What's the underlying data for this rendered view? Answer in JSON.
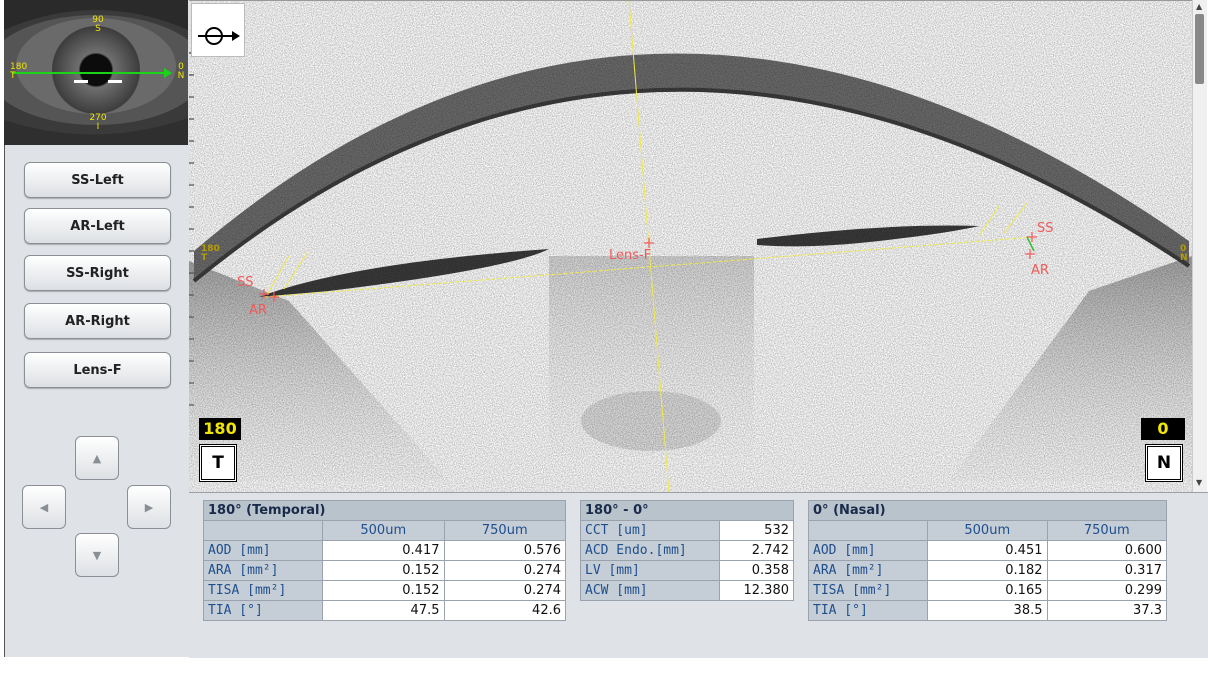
{
  "eye_thumbnail": {
    "labels": {
      "top_deg": "90",
      "top_dir": "S",
      "left_deg": "180",
      "left_dir": "T",
      "right_deg": "0",
      "right_dir": "N",
      "bottom_deg": "270",
      "bottom_dir": "I"
    },
    "scan_line_color": "#19d419"
  },
  "sidebar": {
    "buttons": [
      "SS-Left",
      "AR-Left",
      "SS-Right",
      "AR-Right",
      "Lens-F"
    ],
    "nav_icons": {
      "up": "triangle-up-icon",
      "left": "triangle-left-icon",
      "right": "triangle-right-icon",
      "down": "triangle-down-icon"
    }
  },
  "scan": {
    "orientation_icon": "eye-direction-icon",
    "left_degree": "180",
    "left_direction": "T",
    "right_degree": "0",
    "right_direction": "N",
    "edge_left_deg": "180",
    "edge_left_dir": "T",
    "edge_right_deg": "0",
    "edge_right_dir": "N",
    "markers": {
      "ss_left": "SS",
      "ar_left": "AR",
      "ss_right": "SS",
      "ar_right": "AR",
      "lens": "Lens-F"
    },
    "marker_color": "#f05a5a",
    "guide_color": "#f0e94a"
  },
  "tables": {
    "temporal": {
      "title": "180° (Temporal)",
      "columns": [
        "500um",
        "750um"
      ],
      "rows": [
        {
          "label": "AOD [mm]",
          "v500": "0.417",
          "v750": "0.576"
        },
        {
          "label": "ARA [mm²]",
          "v500": "0.152",
          "v750": "0.274"
        },
        {
          "label": "TISA [mm²]",
          "v500": "0.152",
          "v750": "0.274"
        },
        {
          "label": "TIA [°]",
          "v500": "47.5",
          "v750": "42.6"
        }
      ]
    },
    "center": {
      "title": "180° - 0°",
      "rows": [
        {
          "label": "CCT [um]",
          "value": "532"
        },
        {
          "label": "ACD Endo.[mm]",
          "value": "2.742"
        },
        {
          "label": "LV [mm]",
          "value": "0.358"
        },
        {
          "label": "ACW [mm]",
          "value": "12.380"
        }
      ]
    },
    "nasal": {
      "title": "0° (Nasal)",
      "columns": [
        "500um",
        "750um"
      ],
      "rows": [
        {
          "label": "AOD [mm]",
          "v500": "0.451",
          "v750": "0.600"
        },
        {
          "label": "ARA [mm²]",
          "v500": "0.182",
          "v750": "0.317"
        },
        {
          "label": "TISA [mm²]",
          "v500": "0.165",
          "v750": "0.299"
        },
        {
          "label": "TIA [°]",
          "v500": "38.5",
          "v750": "37.3"
        }
      ]
    }
  }
}
